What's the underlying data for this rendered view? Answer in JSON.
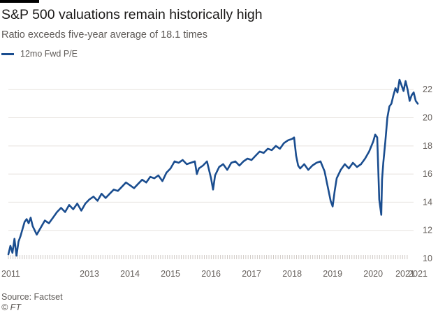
{
  "header": {
    "title": "S&P 500 valuations remain historically high",
    "subtitle": "Ratio exceeds five-year average of 18.1 times"
  },
  "footer": {
    "source": "Source: Factset",
    "copyright": "© FT"
  },
  "colors": {
    "series": "#1a4d8f",
    "grid": "#e7e3df",
    "tick_text": "#66605c"
  },
  "chart_data": {
    "type": "line",
    "title": "S&P 500 valuations remain historically high",
    "subtitle": "Ratio exceeds five-year average of 18.1 times",
    "xlabel": "",
    "ylabel": "",
    "xlim": [
      2011.0,
      2021.1
    ],
    "ylim": [
      10,
      23.6
    ],
    "y_ticks": [
      10,
      12,
      14,
      16,
      18,
      20,
      22
    ],
    "y_tick_side": "right",
    "x_ticks": [
      {
        "value": 2011,
        "label": "2011"
      },
      {
        "value": 2013,
        "label": "2013"
      },
      {
        "value": 2014,
        "label": "2014"
      },
      {
        "value": 2015,
        "label": "2015"
      },
      {
        "value": 2016,
        "label": "2016"
      },
      {
        "value": 2017,
        "label": "2017"
      },
      {
        "value": 2018,
        "label": "2018"
      },
      {
        "value": 2019,
        "label": "2019"
      },
      {
        "value": 2020,
        "label": "2020"
      },
      {
        "value": 2021,
        "label": "2021"
      },
      {
        "value": 2021.1,
        "label": "2021"
      }
    ],
    "grid": true,
    "legend": "top-left",
    "series": [
      {
        "name": "12mo Fwd P/E",
        "x": [
          2011.0,
          2011.05,
          2011.1,
          2011.15,
          2011.2,
          2011.25,
          2011.3,
          2011.35,
          2011.4,
          2011.45,
          2011.5,
          2011.55,
          2011.6,
          2011.7,
          2011.8,
          2011.9,
          2012.0,
          2012.1,
          2012.2,
          2012.3,
          2012.4,
          2012.5,
          2012.6,
          2012.7,
          2012.8,
          2012.9,
          2013.0,
          2013.1,
          2013.2,
          2013.3,
          2013.4,
          2013.5,
          2013.6,
          2013.7,
          2013.8,
          2013.9,
          2014.0,
          2014.1,
          2014.2,
          2014.3,
          2014.4,
          2014.5,
          2014.6,
          2014.7,
          2014.8,
          2014.9,
          2015.0,
          2015.1,
          2015.2,
          2015.3,
          2015.4,
          2015.5,
          2015.6,
          2015.65,
          2015.7,
          2015.8,
          2015.9,
          2016.0,
          2016.05,
          2016.1,
          2016.2,
          2016.3,
          2016.4,
          2016.5,
          2016.6,
          2016.7,
          2016.8,
          2016.9,
          2017.0,
          2017.1,
          2017.2,
          2017.3,
          2017.4,
          2017.5,
          2017.6,
          2017.7,
          2017.8,
          2017.9,
          2018.0,
          2018.05,
          2018.1,
          2018.15,
          2018.2,
          2018.3,
          2018.4,
          2018.5,
          2018.6,
          2018.7,
          2018.8,
          2018.85,
          2018.9,
          2018.95,
          2019.0,
          2019.05,
          2019.1,
          2019.2,
          2019.3,
          2019.4,
          2019.5,
          2019.6,
          2019.7,
          2019.8,
          2019.9,
          2020.0,
          2020.05,
          2020.1,
          2020.15,
          2020.2,
          2020.22,
          2020.25,
          2020.3,
          2020.35,
          2020.4,
          2020.45,
          2020.5,
          2020.55,
          2020.6,
          2020.65,
          2020.7,
          2020.75,
          2020.8,
          2020.85,
          2020.9,
          2020.95,
          2021.0,
          2021.05,
          2021.1
        ],
        "y": [
          10.3,
          10.9,
          10.4,
          11.4,
          10.2,
          11.2,
          11.6,
          12.1,
          12.6,
          12.8,
          12.5,
          12.9,
          12.3,
          11.7,
          12.2,
          12.7,
          12.5,
          12.9,
          13.3,
          13.6,
          13.3,
          13.8,
          13.5,
          13.9,
          13.4,
          13.9,
          14.2,
          14.4,
          14.1,
          14.6,
          14.3,
          14.6,
          14.9,
          14.8,
          15.1,
          15.4,
          15.2,
          15.0,
          15.3,
          15.6,
          15.4,
          15.8,
          15.7,
          15.9,
          15.5,
          16.1,
          16.4,
          16.9,
          16.8,
          17.0,
          16.7,
          16.8,
          16.9,
          16.0,
          16.4,
          16.6,
          16.9,
          15.7,
          14.9,
          15.9,
          16.5,
          16.7,
          16.3,
          16.8,
          16.9,
          16.6,
          16.9,
          17.1,
          17.0,
          17.3,
          17.6,
          17.5,
          17.8,
          17.7,
          18.0,
          17.8,
          18.2,
          18.4,
          18.5,
          18.6,
          17.3,
          16.6,
          16.4,
          16.7,
          16.3,
          16.6,
          16.8,
          16.9,
          16.2,
          15.5,
          14.8,
          14.1,
          13.7,
          14.8,
          15.7,
          16.3,
          16.7,
          16.4,
          16.8,
          16.5,
          16.7,
          17.1,
          17.6,
          18.3,
          18.8,
          18.6,
          14.2,
          13.1,
          15.6,
          16.8,
          18.3,
          20.0,
          20.8,
          21.0,
          21.6,
          22.1,
          21.8,
          22.7,
          22.3,
          21.9,
          22.6,
          22.0,
          21.2,
          21.6,
          21.8,
          21.2,
          21.0
        ]
      }
    ]
  }
}
